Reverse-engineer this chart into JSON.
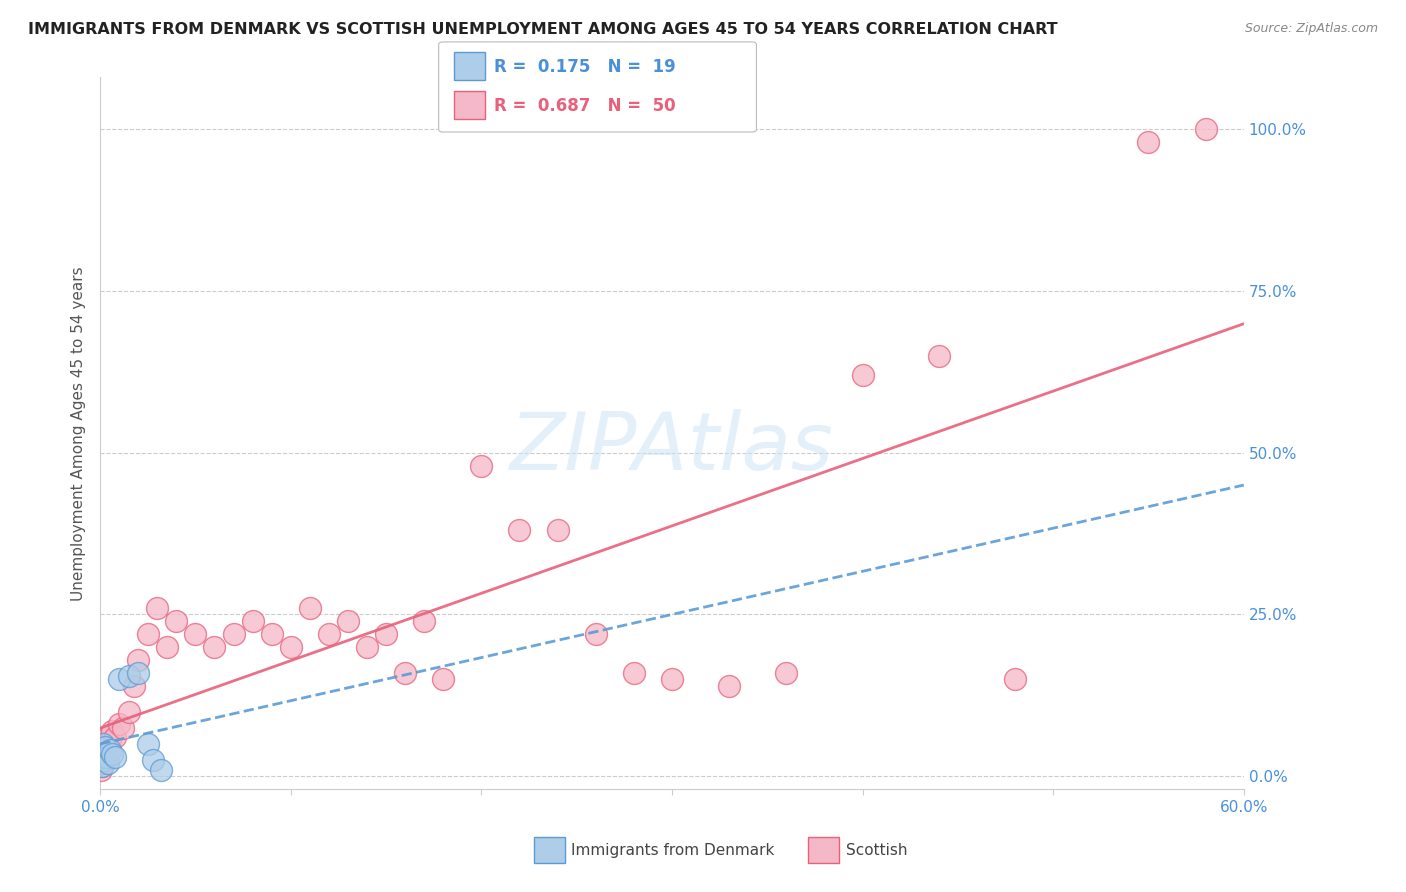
{
  "title": "IMMIGRANTS FROM DENMARK VS SCOTTISH UNEMPLOYMENT AMONG AGES 45 TO 54 YEARS CORRELATION CHART",
  "source": "Source: ZipAtlas.com",
  "ylabel": "Unemployment Among Ages 45 to 54 years",
  "ytick_labels": [
    "0.0%",
    "25.0%",
    "50.0%",
    "75.0%",
    "100.0%"
  ],
  "ytick_values": [
    0,
    25,
    50,
    75,
    100
  ],
  "xlim": [
    0,
    60
  ],
  "ylim": [
    -2,
    108
  ],
  "watermark": "ZIPAtlas",
  "blue_R": 0.175,
  "blue_N": 19,
  "pink_R": 0.687,
  "pink_N": 50,
  "blue_color": "#aecde8",
  "pink_color": "#f4b8c8",
  "blue_edge_color": "#5b9bd5",
  "pink_edge_color": "#e8607a",
  "blue_line_color": "#5b9bd5",
  "pink_line_color": "#e8607a",
  "legend_blue": "Immigrants from Denmark",
  "legend_pink": "Scottish",
  "blue_points_x": [
    0.05,
    0.08,
    0.1,
    0.12,
    0.15,
    0.18,
    0.2,
    0.25,
    0.3,
    0.4,
    0.5,
    0.6,
    0.8,
    1.0,
    1.5,
    2.0,
    2.5,
    2.8,
    3.2
  ],
  "blue_points_y": [
    2.0,
    1.5,
    3.0,
    4.0,
    5.0,
    2.5,
    3.5,
    4.5,
    3.0,
    2.0,
    4.0,
    3.5,
    3.0,
    15.0,
    15.5,
    16.0,
    5.0,
    2.5,
    1.0
  ],
  "pink_points_x": [
    0.05,
    0.08,
    0.1,
    0.12,
    0.15,
    0.18,
    0.2,
    0.22,
    0.25,
    0.3,
    0.4,
    0.5,
    0.6,
    0.8,
    1.0,
    1.2,
    1.5,
    1.8,
    2.0,
    2.5,
    3.0,
    3.5,
    4.0,
    5.0,
    6.0,
    7.0,
    8.0,
    9.0,
    10.0,
    11.0,
    12.0,
    13.0,
    14.0,
    15.0,
    16.0,
    17.0,
    18.0,
    20.0,
    22.0,
    24.0,
    26.0,
    28.0,
    30.0,
    33.0,
    36.0,
    40.0,
    44.0,
    48.0,
    55.0,
    58.0
  ],
  "pink_points_y": [
    1.0,
    2.0,
    1.5,
    3.0,
    2.5,
    4.0,
    3.0,
    2.0,
    5.0,
    4.5,
    6.0,
    5.5,
    7.0,
    6.0,
    8.0,
    7.5,
    10.0,
    14.0,
    18.0,
    22.0,
    26.0,
    20.0,
    24.0,
    22.0,
    20.0,
    22.0,
    24.0,
    22.0,
    20.0,
    26.0,
    22.0,
    24.0,
    20.0,
    22.0,
    16.0,
    24.0,
    15.0,
    48.0,
    38.0,
    38.0,
    22.0,
    16.0,
    15.0,
    14.0,
    16.0,
    62.0,
    65.0,
    15.0,
    98.0,
    100.0
  ]
}
